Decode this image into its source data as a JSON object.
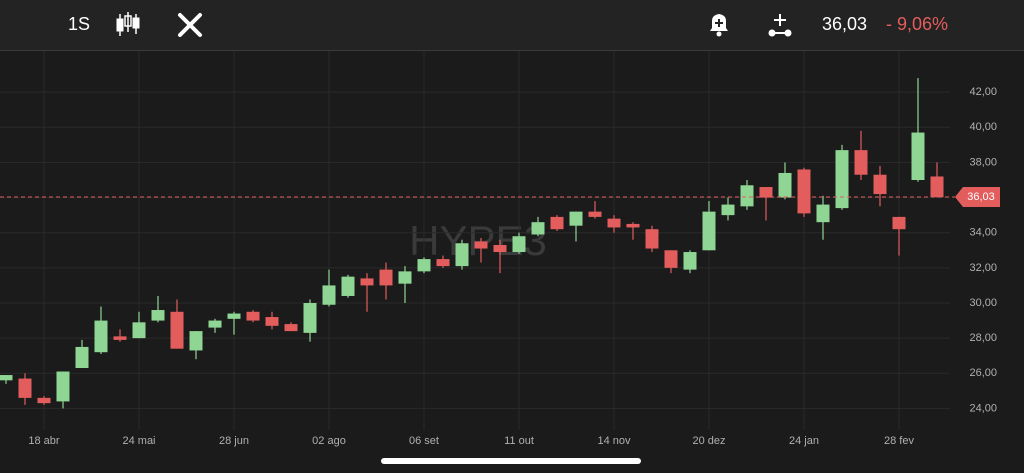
{
  "toolbar": {
    "interval": "1S",
    "price": "36,03",
    "change": "- 9,06%"
  },
  "chart_data": {
    "type": "candlestick",
    "watermark": "HYPE3",
    "categories": [
      null,
      null,
      "18 abr",
      null,
      null,
      null,
      null,
      "24 mai",
      null,
      null,
      null,
      null,
      "28 jun",
      null,
      null,
      null,
      null,
      "02 ago",
      null,
      null,
      null,
      null,
      "06 set",
      null,
      null,
      null,
      null,
      "11 out",
      null,
      null,
      null,
      null,
      "14 nov",
      null,
      null,
      null,
      null,
      "20 dez",
      null,
      null,
      null,
      null,
      "24 jan",
      null,
      null,
      null,
      null,
      "28 fev",
      null,
      null
    ],
    "open": [
      25.6,
      25.7,
      24.6,
      24.4,
      26.3,
      27.2,
      28.1,
      28.0,
      29.0,
      29.5,
      27.3,
      28.6,
      29.1,
      29.5,
      29.2,
      28.8,
      28.3,
      29.9,
      30.4,
      31.4,
      31.9,
      31.1,
      31.8,
      32.5,
      32.1,
      33.5,
      33.3,
      32.9,
      33.9,
      34.9,
      34.4,
      35.2,
      34.8,
      34.5,
      34.2,
      33.0,
      31.9,
      33.0,
      35.0,
      35.5,
      36.6,
      36.0,
      37.6,
      34.6,
      35.4,
      38.7,
      37.3,
      34.9,
      37.0,
      37.2
    ],
    "high": [
      25.9,
      26.0,
      24.7,
      26.1,
      27.9,
      29.8,
      28.5,
      29.5,
      30.4,
      30.2,
      28.4,
      29.1,
      29.5,
      29.6,
      29.5,
      28.9,
      30.2,
      31.9,
      31.6,
      31.7,
      32.3,
      32.1,
      32.6,
      32.7,
      33.6,
      33.7,
      33.6,
      34.0,
      34.9,
      35.0,
      35.2,
      35.8,
      35.0,
      34.6,
      34.4,
      33.0,
      33.0,
      35.8,
      36.0,
      37.0,
      36.6,
      38.0,
      37.7,
      36.1,
      39.0,
      39.8,
      37.8,
      34.9,
      42.8,
      38.0
    ],
    "low": [
      25.4,
      24.2,
      24.2,
      24.0,
      26.3,
      27.1,
      27.8,
      28.0,
      28.9,
      27.4,
      26.8,
      28.3,
      28.2,
      28.9,
      28.5,
      28.4,
      27.8,
      29.8,
      30.3,
      29.5,
      30.2,
      30.0,
      31.7,
      32.0,
      31.9,
      32.3,
      31.7,
      32.8,
      33.8,
      34.1,
      33.5,
      34.8,
      34.0,
      33.6,
      32.9,
      31.7,
      31.7,
      33.0,
      34.7,
      35.3,
      34.7,
      35.9,
      34.9,
      33.6,
      35.3,
      37.0,
      35.5,
      32.7,
      36.9,
      36.0
    ],
    "close": [
      25.9,
      24.6,
      24.3,
      26.1,
      27.5,
      29.0,
      27.9,
      28.9,
      29.6,
      27.4,
      28.4,
      29.0,
      29.4,
      29.0,
      28.7,
      28.4,
      30.0,
      31.0,
      31.5,
      31.0,
      31.0,
      31.8,
      32.5,
      32.1,
      33.4,
      33.1,
      32.9,
      33.8,
      34.6,
      34.2,
      35.2,
      34.9,
      34.3,
      34.3,
      33.1,
      32.0,
      32.9,
      35.2,
      35.6,
      36.7,
      36.0,
      37.4,
      35.1,
      35.6,
      38.7,
      37.3,
      36.2,
      34.2,
      39.7,
      36.03
    ],
    "up_color": "#8fd694",
    "down_color": "#e35d5d",
    "ylim": [
      23,
      44
    ],
    "yticks": [
      {
        "value": 24,
        "label": "24,00"
      },
      {
        "value": 26,
        "label": "26,00"
      },
      {
        "value": 28,
        "label": "28,00"
      },
      {
        "value": 30,
        "label": "30,00"
      },
      {
        "value": 32,
        "label": "32,00"
      },
      {
        "value": 34,
        "label": "34,00"
      },
      {
        "value": 36,
        "label": "36,00"
      },
      {
        "value": 38,
        "label": "38,00"
      },
      {
        "value": 40,
        "label": "40,00"
      },
      {
        "value": 42,
        "label": "42,00"
      }
    ],
    "last_price": {
      "value": 36.03,
      "label": "36,03"
    },
    "grid": true
  }
}
